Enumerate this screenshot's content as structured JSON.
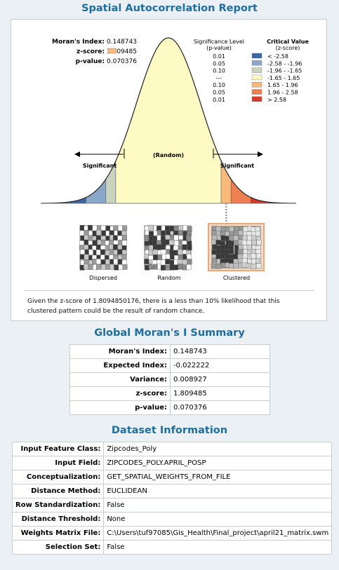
{
  "titles": {
    "report": "Spatial Autocorrelation Report",
    "summary": "Global Moran's I Summary",
    "dataset": "Dataset Information"
  },
  "stats_box": {
    "morans_label": "Moran's Index:",
    "morans_value": "0.148743",
    "z_label": "z-score:",
    "z_value": "1.809485",
    "p_label": "p-value:",
    "p_value": "0.070376"
  },
  "legend": {
    "sig_header_1": "Significance Level",
    "sig_header_2": "(p-value)",
    "crit_header_1": "Critical Value",
    "crit_header_2": "(z-score)",
    "rows": [
      {
        "p": "0.01",
        "z": "< -2.58",
        "color": "#3a66a8"
      },
      {
        "p": "0.05",
        "z": "-2.58 - -1.96",
        "color": "#8aa6c9"
      },
      {
        "p": "0.10",
        "z": "-1.96 - -1.65",
        "color": "#c9d3c0"
      },
      {
        "p": "---",
        "z": "-1.65 - 1.65",
        "color": "#fdfbc3"
      },
      {
        "p": "0.10",
        "z": "1.65 - 1.96",
        "color": "#f8b97a"
      },
      {
        "p": "0.05",
        "z": "1.96 - 2.58",
        "color": "#ee7f52"
      },
      {
        "p": "0.01",
        "z": "> 2.58",
        "color": "#d43b2a"
      }
    ]
  },
  "chart_data": {
    "type": "area",
    "z_score": 1.809485,
    "zone_labels": {
      "left": "Significant",
      "center": "(Random)",
      "right": "Significant"
    },
    "zones": [
      {
        "from": -4,
        "to": -2.58,
        "color": "#3a66a8"
      },
      {
        "from": -2.58,
        "to": -1.96,
        "color": "#8aa6c9"
      },
      {
        "from": -1.96,
        "to": -1.65,
        "color": "#c9d3c0"
      },
      {
        "from": -1.65,
        "to": 1.65,
        "color": "#fdfbc3"
      },
      {
        "from": 1.65,
        "to": 1.96,
        "color": "#f8b97a"
      },
      {
        "from": 1.96,
        "to": 2.58,
        "color": "#ee7f52"
      },
      {
        "from": 2.58,
        "to": 4,
        "color": "#d43b2a"
      }
    ]
  },
  "patterns": [
    {
      "label": "Dispersed",
      "highlighted": false
    },
    {
      "label": "Random",
      "highlighted": false
    },
    {
      "label": "Clustered",
      "highlighted": true
    }
  ],
  "caption": "Given the z-score of 1.8094850176, there is a less than 10% likelihood that this clustered pattern could be the result of random chance.",
  "summary_rows": [
    {
      "label": "Moran's Index:",
      "value": "0.148743"
    },
    {
      "label": "Expected Index:",
      "value": "-0.022222"
    },
    {
      "label": "Variance:",
      "value": "0.008927"
    },
    {
      "label": "z-score:",
      "value": "1.809485"
    },
    {
      "label": "p-value:",
      "value": "0.070376"
    }
  ],
  "dataset_rows": [
    {
      "label": "Input Feature Class:",
      "value": "Zipcodes_Poly"
    },
    {
      "label": "Input Field:",
      "value": "ZIPCODES_POLY.APRIL_POSP"
    },
    {
      "label": "Conceptualization:",
      "value": "GET_SPATIAL_WEIGHTS_FROM_FILE"
    },
    {
      "label": "Distance Method:",
      "value": "EUCLIDEAN"
    },
    {
      "label": "Row Standardization:",
      "value": "False"
    },
    {
      "label": "Distance Threshold:",
      "value": "None"
    },
    {
      "label": "Weights Matrix File:",
      "value": "C:\\Users\\tuf97085\\Gis_Health\\Final_project\\april21_matrix.swm"
    },
    {
      "label": "Selection Set:",
      "value": "False"
    }
  ],
  "colors": {
    "title": "#1e6ea0",
    "highlight_frame": "#e7a97c",
    "zscore_marker": "#f8b97a"
  }
}
